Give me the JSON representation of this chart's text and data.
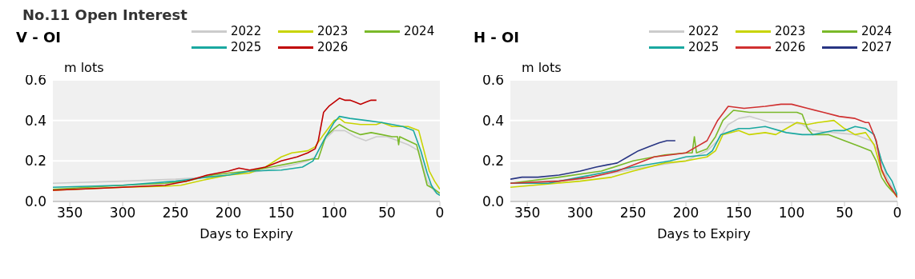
{
  "chart_data": [
    {
      "type": "line",
      "title": "No.11 Open Interest",
      "subtitle": "V - OI",
      "ylabel": "m lots",
      "xlabel": "Days to Expiry",
      "xlim": [
        366,
        0
      ],
      "xticks": [
        350,
        300,
        250,
        200,
        150,
        100,
        50,
        0
      ],
      "ylim": [
        0,
        0.6
      ],
      "yticks": [
        {
          "value": 0,
          "label": "0.0"
        },
        0.2,
        0.4,
        0.6
      ],
      "grid": "y",
      "legend": "top right",
      "series": [
        {
          "name": "2022",
          "color": "#cccccc",
          "x": [
            366,
            300,
            250,
            220,
            200,
            170,
            140,
            125,
            118,
            110,
            100,
            90,
            80,
            70,
            60,
            50,
            40,
            30,
            20,
            12,
            5,
            0
          ],
          "values": [
            0.09,
            0.1,
            0.11,
            0.12,
            0.13,
            0.15,
            0.18,
            0.2,
            0.22,
            0.3,
            0.35,
            0.35,
            0.32,
            0.3,
            0.32,
            0.32,
            0.3,
            0.28,
            0.25,
            0.1,
            0.05,
            0.03
          ]
        },
        {
          "name": "2023",
          "color": "#c8d400",
          "x": [
            366,
            300,
            260,
            245,
            220,
            200,
            180,
            165,
            150,
            140,
            125,
            118,
            110,
            100,
            95,
            90,
            75,
            60,
            55,
            45,
            30,
            20,
            15,
            10,
            5,
            0
          ],
          "values": [
            0.055,
            0.07,
            0.075,
            0.08,
            0.11,
            0.13,
            0.14,
            0.17,
            0.22,
            0.24,
            0.25,
            0.27,
            0.33,
            0.4,
            0.41,
            0.39,
            0.38,
            0.38,
            0.39,
            0.37,
            0.37,
            0.35,
            0.25,
            0.15,
            0.1,
            0.06
          ]
        },
        {
          "name": "2024",
          "color": "#7ab929",
          "x": [
            366,
            300,
            260,
            240,
            215,
            200,
            180,
            160,
            140,
            120,
            115,
            108,
            100,
            95,
            85,
            75,
            65,
            55,
            45,
            40,
            39,
            38,
            30,
            22,
            18,
            12,
            5,
            0
          ],
          "values": [
            0.06,
            0.08,
            0.09,
            0.1,
            0.13,
            0.14,
            0.15,
            0.17,
            0.19,
            0.21,
            0.21,
            0.32,
            0.36,
            0.38,
            0.35,
            0.33,
            0.34,
            0.33,
            0.32,
            0.32,
            0.28,
            0.32,
            0.3,
            0.28,
            0.2,
            0.08,
            0.06,
            0.04
          ]
        },
        {
          "name": "2025",
          "color": "#1aa8a0",
          "x": [
            366,
            300,
            250,
            220,
            200,
            180,
            150,
            130,
            120,
            110,
            100,
            95,
            85,
            70,
            55,
            45,
            35,
            25,
            18,
            12,
            8,
            3,
            0
          ],
          "values": [
            0.07,
            0.08,
            0.1,
            0.12,
            0.13,
            0.15,
            0.155,
            0.17,
            0.2,
            0.3,
            0.39,
            0.42,
            0.41,
            0.4,
            0.39,
            0.38,
            0.37,
            0.35,
            0.25,
            0.14,
            0.08,
            0.04,
            0.03
          ]
        },
        {
          "name": "2026",
          "color": "#c00000",
          "x": [
            366,
            300,
            260,
            240,
            220,
            200,
            190,
            180,
            165,
            150,
            135,
            125,
            118,
            115,
            110,
            105,
            100,
            95,
            90,
            85,
            80,
            75,
            70,
            65,
            60
          ],
          "values": [
            0.055,
            0.07,
            0.08,
            0.1,
            0.13,
            0.15,
            0.165,
            0.155,
            0.17,
            0.2,
            0.22,
            0.24,
            0.26,
            0.3,
            0.44,
            0.47,
            0.49,
            0.51,
            0.5,
            0.5,
            0.49,
            0.48,
            0.49,
            0.5,
            0.5
          ]
        }
      ]
    },
    {
      "type": "line",
      "title": "H - OI",
      "ylabel": "m lots",
      "xlabel": "Days to Expiry",
      "xlim": [
        366,
        0
      ],
      "xticks": [
        350,
        300,
        250,
        200,
        150,
        100,
        50,
        0
      ],
      "ylim": [
        0,
        0.6
      ],
      "yticks": [
        {
          "value": 0,
          "label": "0.0"
        },
        0.2,
        0.4,
        0.6
      ],
      "grid": "y",
      "legend": "top right",
      "series": [
        {
          "name": "2022",
          "color": "#cccccc",
          "x": [
            366,
            300,
            250,
            200,
            180,
            170,
            160,
            150,
            140,
            120,
            100,
            90,
            80,
            60,
            40,
            25,
            18,
            10,
            3,
            0
          ],
          "values": [
            0.09,
            0.11,
            0.16,
            0.2,
            0.25,
            0.3,
            0.38,
            0.41,
            0.42,
            0.39,
            0.39,
            0.38,
            0.35,
            0.34,
            0.33,
            0.3,
            0.25,
            0.12,
            0.05,
            0.03
          ]
        },
        {
          "name": "2023",
          "color": "#c8d400",
          "x": [
            366,
            300,
            270,
            250,
            220,
            200,
            180,
            172,
            165,
            150,
            140,
            125,
            115,
            105,
            95,
            85,
            75,
            60,
            50,
            40,
            30,
            22,
            15,
            8,
            3,
            0
          ],
          "values": [
            0.07,
            0.1,
            0.12,
            0.15,
            0.19,
            0.2,
            0.22,
            0.25,
            0.33,
            0.35,
            0.33,
            0.34,
            0.33,
            0.36,
            0.39,
            0.38,
            0.39,
            0.4,
            0.36,
            0.33,
            0.34,
            0.28,
            0.15,
            0.08,
            0.04,
            0.02
          ]
        },
        {
          "name": "2024",
          "color": "#7ab929",
          "x": [
            366,
            320,
            280,
            250,
            220,
            200,
            194,
            192,
            190,
            180,
            172,
            165,
            155,
            140,
            110,
            95,
            90,
            85,
            80,
            65,
            50,
            35,
            25,
            20,
            15,
            10,
            5,
            0
          ],
          "values": [
            0.09,
            0.12,
            0.15,
            0.2,
            0.23,
            0.24,
            0.24,
            0.32,
            0.24,
            0.26,
            0.32,
            0.4,
            0.45,
            0.44,
            0.44,
            0.44,
            0.43,
            0.36,
            0.33,
            0.33,
            0.3,
            0.27,
            0.25,
            0.2,
            0.12,
            0.08,
            0.05,
            0.03
          ]
        },
        {
          "name": "2025",
          "color": "#1aa8a0",
          "x": [
            366,
            330,
            300,
            270,
            250,
            215,
            200,
            180,
            175,
            167,
            150,
            140,
            125,
            105,
            90,
            80,
            60,
            50,
            40,
            30,
            22,
            15,
            10,
            5,
            0
          ],
          "values": [
            0.09,
            0.09,
            0.12,
            0.15,
            0.17,
            0.2,
            0.22,
            0.23,
            0.25,
            0.33,
            0.36,
            0.36,
            0.37,
            0.34,
            0.33,
            0.33,
            0.35,
            0.35,
            0.37,
            0.36,
            0.33,
            0.2,
            0.14,
            0.1,
            0.03
          ]
        },
        {
          "name": "2026",
          "color": "#d03030",
          "x": [
            366,
            320,
            290,
            265,
            250,
            230,
            200,
            190,
            180,
            170,
            160,
            145,
            125,
            110,
            100,
            85,
            70,
            55,
            40,
            30,
            27,
            20,
            15,
            10,
            5,
            0
          ],
          "values": [
            0.09,
            0.1,
            0.12,
            0.15,
            0.18,
            0.22,
            0.24,
            0.27,
            0.3,
            0.4,
            0.47,
            0.46,
            0.47,
            0.48,
            0.48,
            0.46,
            0.44,
            0.42,
            0.41,
            0.39,
            0.39,
            0.3,
            0.16,
            0.1,
            0.06,
            0.02
          ]
        },
        {
          "name": "2027",
          "color": "#283583",
          "x": [
            366,
            355,
            340,
            320,
            300,
            285,
            275,
            265,
            255,
            245,
            235,
            225,
            218,
            210
          ],
          "values": [
            0.11,
            0.12,
            0.12,
            0.13,
            0.15,
            0.17,
            0.18,
            0.19,
            0.22,
            0.25,
            0.27,
            0.29,
            0.3,
            0.3
          ]
        }
      ]
    }
  ]
}
